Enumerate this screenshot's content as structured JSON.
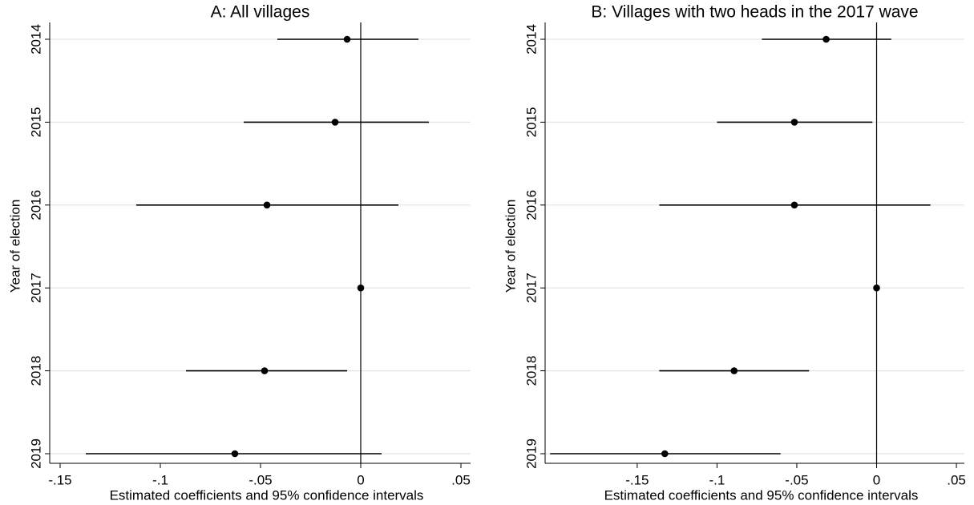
{
  "chart_data": [
    {
      "type": "coefplot",
      "title": "A: All villages",
      "xlabel": "Estimated coefficients and 95% confidence intervals",
      "ylabel": "Year of election",
      "categories": [
        "2014",
        "2015",
        "2016",
        "2017",
        "2018",
        "2019"
      ],
      "values": [
        -0.0068,
        -0.0128,
        -0.0468,
        0,
        -0.048,
        -0.0628
      ],
      "lower": [
        -0.0416,
        -0.0584,
        -0.112,
        0,
        -0.0872,
        -0.1372
      ],
      "upper": [
        0.0288,
        0.034,
        0.0188,
        0,
        -0.0068,
        0.0104
      ],
      "color": "#000000",
      "xlim": [
        -0.1552,
        0.0548
      ],
      "xticks": [
        {
          "value": -0.15,
          "label": "-.15"
        },
        {
          "value": -0.1,
          "label": "-.1"
        },
        {
          "value": -0.05,
          "label": "-.05"
        },
        0,
        {
          "value": 0.05,
          "label": ".05"
        }
      ],
      "reference_line_x": 0,
      "grid": true
    },
    {
      "type": "coefplot",
      "title": "B: Villages with two heads in the 2017 wave",
      "xlabel": "Estimated coefficients and 95% confidence intervals",
      "ylabel": "Year of election",
      "categories": [
        "2014",
        "2015",
        "2016",
        "2017",
        "2018",
        "2019"
      ],
      "values": [
        -0.0316,
        -0.0515,
        -0.0515,
        0,
        -0.0893,
        -0.1327
      ],
      "lower": [
        -0.0719,
        -0.1,
        -0.1362,
        0,
        -0.1362,
        -0.2046
      ],
      "upper": [
        0.0092,
        -0.0026,
        0.0337,
        0,
        -0.0423,
        -0.0602
      ],
      "color": "#000000",
      "xlim": [
        -0.2077,
        0.055
      ],
      "xticks": [
        {
          "value": -0.15,
          "label": "-.15"
        },
        {
          "value": -0.1,
          "label": "-.1"
        },
        {
          "value": -0.05,
          "label": "-.05"
        },
        0,
        {
          "value": 0.05,
          "label": ".05"
        }
      ],
      "reference_line_x": 0,
      "grid": true
    }
  ]
}
